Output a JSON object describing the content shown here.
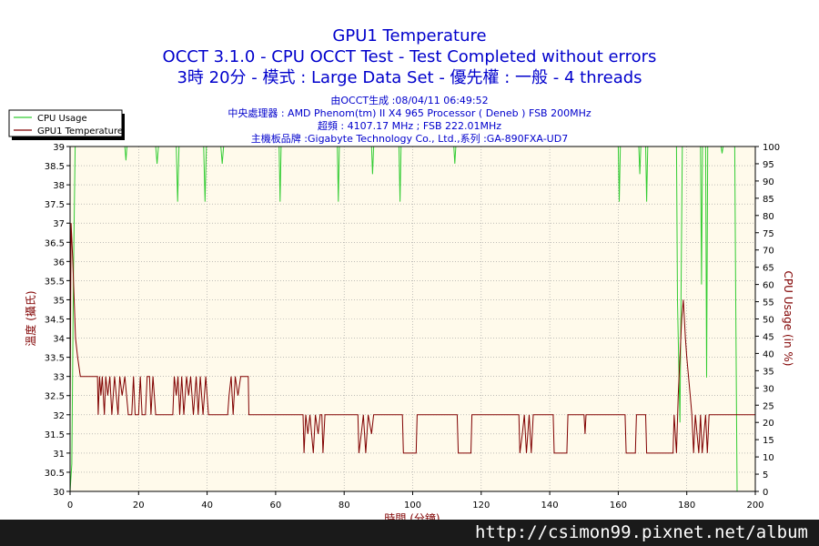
{
  "chart_data": {
    "type": "line",
    "title": "GPU1 Temperature",
    "subtitle_lines": [
      "OCCT 3.1.0 - CPU OCCT Test - Test Completed without errors",
      "3時 20分 - 模式 : Large Data Set - 優先權 : 一般 - 4 threads"
    ],
    "info_lines": [
      "由OCCT生成 :08/04/11 06:49:52",
      "中央處理器 : AMD Phenom(tm) II X4 965 Processor ( Deneb ) FSB 200MHz",
      "超頻 : 4107.17 MHz ; FSB 222.01MHz",
      "主機板品牌 :Gigabyte Technology Co., Ltd.,系列 :GA-890FXA-UD7"
    ],
    "xlabel": "時間 (分鐘)",
    "ylabel_left": "溫度 (攝氏)",
    "ylabel_right": "CPU Usage (in %)",
    "xlim": [
      0,
      200
    ],
    "ylim_left": [
      30,
      39
    ],
    "ylim_right": [
      0,
      100
    ],
    "xticks": [
      0,
      20,
      40,
      60,
      80,
      100,
      120,
      140,
      160,
      180,
      200
    ],
    "yticks_left": [
      "30",
      "30.5",
      "31",
      "31.5",
      "32",
      "32.5",
      "33",
      "33.5",
      "34",
      "34.5",
      "35",
      "35.5",
      "36",
      "36.5",
      "37",
      "37.5",
      "38",
      "38.5",
      "39"
    ],
    "yticks_right": [
      0,
      5,
      10,
      15,
      20,
      25,
      30,
      35,
      40,
      45,
      50,
      55,
      60,
      65,
      70,
      75,
      80,
      85,
      90,
      95,
      100
    ],
    "grid": true,
    "legend_position": "top-left",
    "series": [
      {
        "name": "CPU Usage",
        "axis": "right",
        "color": "#33cc33",
        "points": [
          [
            0,
            0
          ],
          [
            0.5,
            8
          ],
          [
            1,
            65
          ],
          [
            1.5,
            100
          ],
          [
            16,
            100
          ],
          [
            16.3,
            96
          ],
          [
            16.6,
            100
          ],
          [
            25,
            100
          ],
          [
            25.4,
            95
          ],
          [
            25.8,
            100
          ],
          [
            31,
            100
          ],
          [
            31.4,
            84
          ],
          [
            31.8,
            100
          ],
          [
            39,
            100
          ],
          [
            39.4,
            84
          ],
          [
            39.8,
            100
          ],
          [
            44,
            100
          ],
          [
            44.4,
            95
          ],
          [
            44.8,
            100
          ],
          [
            61,
            100
          ],
          [
            61.3,
            84
          ],
          [
            61.6,
            100
          ],
          [
            78,
            100
          ],
          [
            78.3,
            84
          ],
          [
            78.6,
            100
          ],
          [
            88,
            100
          ],
          [
            88.3,
            92
          ],
          [
            88.6,
            100
          ],
          [
            96,
            100
          ],
          [
            96.3,
            84
          ],
          [
            96.6,
            100
          ],
          [
            112,
            100
          ],
          [
            112.3,
            95
          ],
          [
            112.6,
            100
          ],
          [
            160,
            100
          ],
          [
            160.3,
            84
          ],
          [
            160.6,
            100
          ],
          [
            166,
            100
          ],
          [
            166.3,
            92
          ],
          [
            166.6,
            100
          ],
          [
            168,
            100
          ],
          [
            168.3,
            84
          ],
          [
            168.6,
            100
          ],
          [
            177,
            100
          ],
          [
            177.3,
            55
          ],
          [
            178,
            20
          ],
          [
            178.7,
            100
          ],
          [
            184,
            100
          ],
          [
            184.3,
            60
          ],
          [
            184.6,
            100
          ],
          [
            185.5,
            100
          ],
          [
            185.8,
            33
          ],
          [
            186.1,
            100
          ],
          [
            190,
            100
          ],
          [
            190.3,
            98
          ],
          [
            190.6,
            100
          ],
          [
            194,
            100
          ],
          [
            194.3,
            55
          ],
          [
            194.7,
            0
          ],
          [
            200,
            0
          ]
        ]
      },
      {
        "name": "GPU1 Temperature",
        "axis": "left",
        "color": "#800000",
        "points": [
          [
            0,
            32
          ],
          [
            0.3,
            37
          ],
          [
            0.8,
            36
          ],
          [
            1.2,
            35
          ],
          [
            1.6,
            34
          ],
          [
            2.2,
            33.5
          ],
          [
            3,
            33
          ],
          [
            8,
            33
          ],
          [
            8.2,
            32
          ],
          [
            8.6,
            33
          ],
          [
            9,
            32.5
          ],
          [
            9.4,
            33
          ],
          [
            10,
            32
          ],
          [
            10.4,
            33
          ],
          [
            11,
            32.5
          ],
          [
            11.6,
            33
          ],
          [
            12.2,
            32
          ],
          [
            13,
            33
          ],
          [
            14,
            32
          ],
          [
            14.5,
            33
          ],
          [
            15.2,
            32.5
          ],
          [
            16,
            33
          ],
          [
            17,
            32
          ],
          [
            18,
            32
          ],
          [
            18.5,
            33
          ],
          [
            19,
            32
          ],
          [
            20,
            32
          ],
          [
            20.5,
            33
          ],
          [
            21,
            32
          ],
          [
            22,
            32
          ],
          [
            22.5,
            33
          ],
          [
            23.2,
            33
          ],
          [
            23.6,
            32
          ],
          [
            24.2,
            33
          ],
          [
            25,
            32
          ],
          [
            30,
            32
          ],
          [
            30.4,
            33
          ],
          [
            31,
            32.5
          ],
          [
            31.5,
            33
          ],
          [
            32,
            32
          ],
          [
            32.6,
            33
          ],
          [
            33.2,
            32
          ],
          [
            34,
            33
          ],
          [
            34.6,
            32.5
          ],
          [
            35.2,
            33
          ],
          [
            36,
            32
          ],
          [
            36.8,
            33
          ],
          [
            37.4,
            32
          ],
          [
            38,
            33
          ],
          [
            38.8,
            32
          ],
          [
            39.6,
            33
          ],
          [
            40.4,
            32
          ],
          [
            41,
            32
          ],
          [
            46,
            32
          ],
          [
            46.4,
            32.5
          ],
          [
            47,
            33
          ],
          [
            47.6,
            32
          ],
          [
            48.2,
            33
          ],
          [
            49,
            32.5
          ],
          [
            49.8,
            33
          ],
          [
            52,
            33
          ],
          [
            52.2,
            32
          ],
          [
            68,
            32
          ],
          [
            68.3,
            31
          ],
          [
            68.8,
            32
          ],
          [
            69.4,
            31.5
          ],
          [
            70,
            32
          ],
          [
            71,
            31
          ],
          [
            71.6,
            32
          ],
          [
            72.4,
            31.5
          ],
          [
            73,
            32
          ],
          [
            73.5,
            32
          ],
          [
            73.8,
            31
          ],
          [
            74.4,
            32
          ],
          [
            75,
            32
          ],
          [
            84,
            32
          ],
          [
            84.3,
            31
          ],
          [
            85,
            31.5
          ],
          [
            85.6,
            32
          ],
          [
            86.3,
            31
          ],
          [
            87,
            32
          ],
          [
            88,
            31.5
          ],
          [
            88.6,
            32
          ],
          [
            89,
            32
          ],
          [
            97,
            32
          ],
          [
            97.3,
            31
          ],
          [
            101,
            31
          ],
          [
            101.3,
            32
          ],
          [
            113,
            32
          ],
          [
            113.3,
            31
          ],
          [
            117,
            31
          ],
          [
            117.3,
            32
          ],
          [
            131,
            32
          ],
          [
            131.3,
            31
          ],
          [
            132,
            31.5
          ],
          [
            132.6,
            32
          ],
          [
            133.2,
            31
          ],
          [
            134,
            32
          ],
          [
            134.6,
            31
          ],
          [
            135.2,
            32
          ],
          [
            141,
            32
          ],
          [
            141.3,
            31
          ],
          [
            145,
            31
          ],
          [
            145.3,
            32
          ],
          [
            150,
            32
          ],
          [
            150.3,
            31.5
          ],
          [
            150.6,
            32
          ],
          [
            162,
            32
          ],
          [
            162.3,
            31
          ],
          [
            165,
            31
          ],
          [
            165.3,
            32
          ],
          [
            168,
            32
          ],
          [
            168.3,
            31
          ],
          [
            176,
            31
          ],
          [
            176.3,
            32
          ],
          [
            177,
            31
          ],
          [
            177.5,
            32.5
          ],
          [
            178,
            33.5
          ],
          [
            178.5,
            34.5
          ],
          [
            179,
            35
          ],
          [
            179.6,
            34
          ],
          [
            180,
            33.5
          ],
          [
            180.5,
            33
          ],
          [
            181,
            32.5
          ],
          [
            181.5,
            32
          ],
          [
            182,
            31
          ],
          [
            182.5,
            32
          ],
          [
            183,
            31.5
          ],
          [
            183.5,
            31
          ],
          [
            184,
            32
          ],
          [
            184.5,
            31
          ],
          [
            185,
            31.5
          ],
          [
            185.5,
            32
          ],
          [
            186,
            31
          ],
          [
            186.5,
            32
          ],
          [
            187,
            32
          ],
          [
            200,
            32
          ]
        ]
      }
    ]
  },
  "watermark_text": "http://csimon99.pixnet.net/album"
}
